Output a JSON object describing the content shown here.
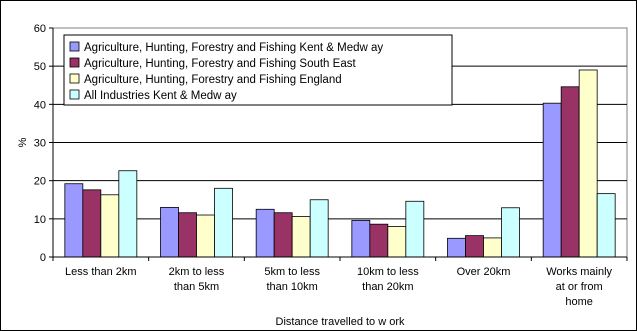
{
  "chart_data": {
    "type": "bar",
    "title": "",
    "xlabel": "Distance travelled to w ork",
    "ylabel": "%",
    "ylim": [
      0,
      60
    ],
    "yticks": [
      "0",
      "10",
      "20",
      "30",
      "40",
      "50",
      "60"
    ],
    "grid": true,
    "legend_position": "top-left",
    "categories": [
      [
        "Less than 2km"
      ],
      [
        "2km to less",
        "than 5km"
      ],
      [
        "5km to less",
        "than 10km"
      ],
      [
        "10km to less",
        "than 20km"
      ],
      [
        "Over 20km"
      ],
      [
        "Works mainly",
        "at or from",
        "home"
      ]
    ],
    "series": [
      {
        "name": "Agriculture, Hunting, Forestry and Fishing Kent & Medw ay",
        "color": "#9999ff",
        "values": [
          19.2,
          13.0,
          12.5,
          9.6,
          4.9,
          40.3
        ]
      },
      {
        "name": "Agriculture, Hunting, Forestry and Fishing South East",
        "color": "#993366",
        "values": [
          17.6,
          11.6,
          11.6,
          8.6,
          5.6,
          44.6
        ]
      },
      {
        "name": "Agriculture, Hunting, Forestry and Fishing England",
        "color": "#ffffcc",
        "values": [
          16.3,
          11.0,
          10.6,
          8.0,
          5.0,
          49.0
        ]
      },
      {
        "name": "All Industries Kent & Medw ay",
        "color": "#ccffff",
        "values": [
          22.6,
          18.0,
          15.0,
          14.6,
          12.9,
          16.6
        ]
      }
    ]
  }
}
